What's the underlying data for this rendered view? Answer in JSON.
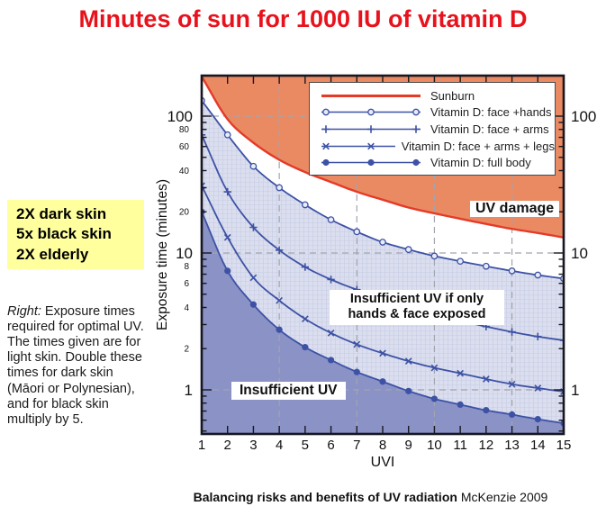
{
  "title": "Minutes of sun for 1000 IU of vitamin D",
  "left_panel": {
    "multipliers": [
      "2X dark skin",
      "5x black skin",
      "2X elderly"
    ],
    "note_label": "Right:",
    "note_text": " Exposure times required for optimal UV. The times given are for light skin. Double these times for dark skin (Māori or Polynesian), and for black skin multiply by 5."
  },
  "caption": {
    "bold": "Balancing risks and benefits of UV radiation",
    "regular": " McKenzie 2009"
  },
  "chart_data": {
    "type": "line",
    "xlabel": "UVI",
    "ylabel": "Exposure time (minutes)",
    "x": [
      1,
      2,
      3,
      4,
      5,
      6,
      7,
      8,
      9,
      10,
      11,
      12,
      13,
      14,
      15
    ],
    "xlim": [
      1,
      15
    ],
    "ylim": [
      0.47,
      195
    ],
    "y_scale": "log",
    "x_ticks": [
      1,
      2,
      3,
      4,
      5,
      6,
      7,
      8,
      9,
      10,
      11,
      12,
      13,
      14,
      15
    ],
    "y_ticks_major": [
      1,
      10,
      100
    ],
    "y_ticks_minor_labeled": [
      2,
      4,
      6,
      8,
      20,
      40,
      60,
      80
    ],
    "y_ticks_minor": [
      0.5,
      0.6,
      0.7,
      0.8,
      0.9,
      2,
      3,
      4,
      5,
      6,
      7,
      8,
      9,
      20,
      30,
      40,
      50,
      60,
      70,
      80,
      90
    ],
    "x_gridlines": [
      4,
      7,
      10,
      13
    ],
    "y_gridlines": [
      1,
      10,
      100
    ],
    "legend_position": "top-right-inside",
    "grid": "dashed",
    "series": [
      {
        "name": "Sunburn",
        "marker": "none",
        "values": [
          195,
          95,
          64,
          48,
          39,
          33,
          28,
          24.5,
          21.5,
          19.5,
          17.8,
          16.3,
          15,
          14,
          13
        ]
      },
      {
        "name": "Vitamin D: face +hands",
        "marker": "circle-open",
        "values": [
          130,
          73,
          43,
          30,
          22.5,
          17.5,
          14.3,
          12,
          10.6,
          9.5,
          8.7,
          8.0,
          7.4,
          6.9,
          6.5
        ]
      },
      {
        "name": "Vitamin D: face + arms",
        "marker": "plus",
        "values": [
          73,
          28,
          15.4,
          10.5,
          7.9,
          6.4,
          5.4,
          4.7,
          4.1,
          3.6,
          3.2,
          2.9,
          2.65,
          2.45,
          2.3
        ]
      },
      {
        "name": "Vitamin D: face + arms + legs",
        "marker": "x",
        "values": [
          31,
          13,
          6.6,
          4.5,
          3.3,
          2.6,
          2.15,
          1.85,
          1.62,
          1.45,
          1.32,
          1.2,
          1.1,
          1.03,
          0.97
        ]
      },
      {
        "name": "Vitamin D: full body",
        "marker": "circle-filled",
        "values": [
          20,
          7.4,
          4.2,
          2.75,
          2.05,
          1.65,
          1.35,
          1.15,
          0.98,
          0.86,
          0.78,
          0.71,
          0.66,
          0.61,
          0.57
        ]
      }
    ],
    "annotations": {
      "uv_damage": "UV damage",
      "insufficient_partial": "Insufficient UV if only hands & face exposed",
      "insufficient": "Insufficient UV"
    }
  },
  "colors": {
    "title_red": "#e8121c",
    "sunburn_line": "#e53a28",
    "curve_blue": "#3d52a5",
    "region_damage": "#ea8a63",
    "region_mid": "#dbdeee",
    "region_mid_grid": "#c6cce4",
    "region_insufficient": "#8a92c6",
    "gridline": "#a2a4ae",
    "axis": "#17171f",
    "highlight_yellow": "#ffff9e"
  }
}
